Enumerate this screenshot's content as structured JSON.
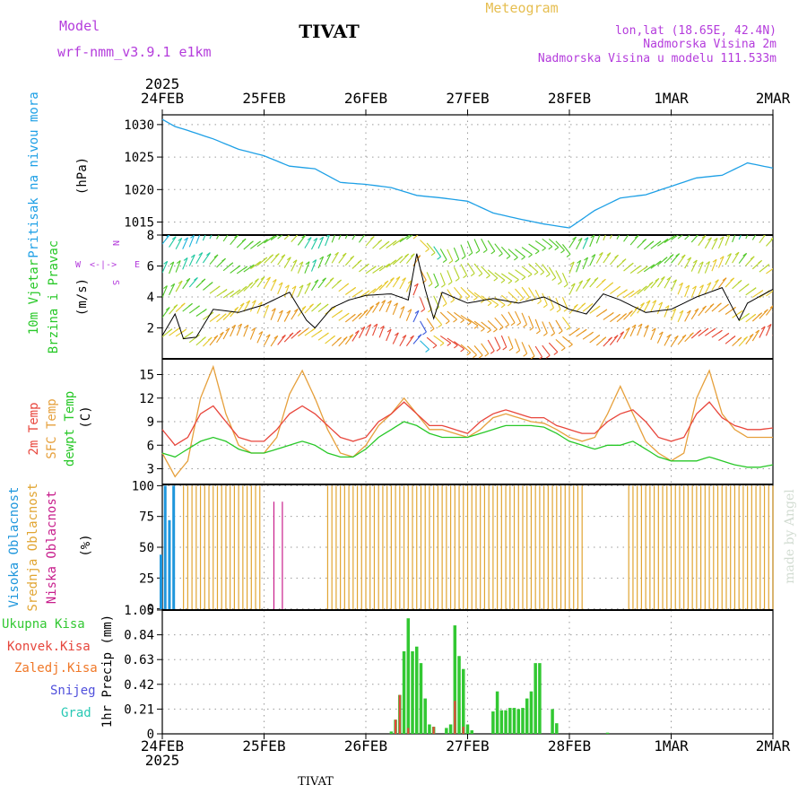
{
  "header": {
    "model_label": "Model",
    "model_name": "wrf-nmm_v3.9.1 e1km",
    "title": "TIVAT",
    "meteogram": "Meteogram",
    "lonlat": "lon,lat (18.65E, 42.4N)",
    "elevation": "Nadmorska Visina 2m",
    "model_elevation": "Nadmorska Visina u modelu 111.533m",
    "watermark": "made by Angel"
  },
  "footer": {
    "station": "TIVAT"
  },
  "colors": {
    "pressure": "#1ea0e6",
    "temp2m": "#e8463c",
    "sfc": "#e6a03c",
    "dewpt": "#28c828",
    "high_cloud": "#1e96dc",
    "mid_cloud": "#e1a532",
    "low_cloud": "#c81e8c",
    "rain_total": "#32c832",
    "rain_conv": "#e6463c",
    "freezing": "#f07828",
    "snow": "#5050dc",
    "hail": "#28c8b4",
    "wind_speed": "#000000"
  },
  "time_axis": {
    "year": "2025",
    "labels": [
      "24FEB",
      "25FEB",
      "26FEB",
      "27FEB",
      "28FEB",
      "1MAR",
      "2MAR"
    ]
  },
  "panels": {
    "pressure": {
      "ylabel": "Pritisak na nivou mora",
      "unit": "(hPa)",
      "ticks": [
        "1015",
        "1020",
        "1025",
        "1030"
      ]
    },
    "wind": {
      "ylabel1": "10m Vjetar",
      "ylabel2": "Brzina i Pravac",
      "unit": "(m/s)",
      "compass_n": "N",
      "compass_s": "S",
      "compass_w": "W",
      "compass_e": "E",
      "ticks": [
        "2",
        "4",
        "6",
        "8"
      ]
    },
    "temp": {
      "label_2m": "2m Temp",
      "label_sfc": "SFC Temp",
      "label_dew": "dewpt Temp",
      "unit": "(C)",
      "ticks": [
        "3",
        "6",
        "9",
        "12",
        "15"
      ]
    },
    "cloud": {
      "label_high": "Visoka Oblacnost",
      "label_mid": "Srednja Oblacnost",
      "label_low": "Niska Oblacnost",
      "unit": "(%)",
      "ticks": [
        "0",
        "25",
        "50",
        "75",
        "100"
      ]
    },
    "precip": {
      "ylabel": "1hr Precip (mm)",
      "legend_total": "Ukupna Kisa",
      "legend_conv": "Konvek.Kisa",
      "legend_freezing": "Zaledj.Kisa",
      "legend_snow": "Snijeg",
      "legend_hail": "Grad",
      "ticks": [
        "0",
        "0.21",
        "0.42",
        "0.63",
        "0.84",
        "1.05"
      ]
    }
  },
  "chart_data": [
    {
      "type": "line",
      "title": "Pritisak na nivou mora",
      "ylabel": "(hPa)",
      "ylim": [
        1013,
        1031.5
      ],
      "x_hours": [
        0,
        3,
        6,
        12,
        18,
        24,
        30,
        36,
        42,
        48,
        54,
        60,
        66,
        72,
        78,
        84,
        90,
        96,
        102,
        108,
        114,
        120,
        126,
        132,
        138,
        144
      ],
      "series": [
        {
          "values": [
            1030.8,
            1029.7,
            1029.1,
            1027.8,
            1026.2,
            1025.2,
            1023.6,
            1023.2,
            1021.1,
            1020.8,
            1020.3,
            1019.1,
            1018.7,
            1018.2,
            1016.4,
            1015.5,
            1014.7,
            1014.1,
            1016.8,
            1018.7,
            1019.2,
            1020.5,
            1021.8,
            1022.2,
            1024.1,
            1023.3
          ]
        }
      ]
    },
    {
      "type": "line",
      "title": "10m Vjetar Brzina i Pravac",
      "ylabel": "(m/s)",
      "ylim": [
        0,
        8
      ],
      "x_hours": [
        0,
        3,
        5,
        8,
        12,
        18,
        24,
        30,
        34,
        36,
        40,
        44,
        48,
        54,
        58,
        60,
        62,
        64,
        66,
        72,
        78,
        84,
        90,
        96,
        100,
        104,
        108,
        114,
        120,
        126,
        132,
        136,
        138,
        144
      ],
      "series": [
        {
          "values": [
            1.5,
            2.9,
            1.3,
            1.4,
            3.2,
            3.0,
            3.5,
            4.3,
            2.5,
            2.0,
            3.3,
            3.8,
            4.1,
            4.2,
            3.8,
            6.8,
            4.5,
            2.6,
            4.3,
            3.6,
            3.9,
            3.6,
            4.0,
            3.2,
            2.9,
            4.2,
            3.8,
            3.0,
            3.2,
            4.0,
            4.6,
            2.5,
            3.6,
            4.5
          ]
        }
      ]
    },
    {
      "type": "line",
      "title": "Temp",
      "ylabel": "(C)",
      "ylim": [
        1,
        17
      ],
      "x_hours": [
        0,
        3,
        6,
        9,
        12,
        15,
        18,
        21,
        24,
        27,
        30,
        33,
        36,
        39,
        42,
        45,
        48,
        51,
        54,
        57,
        60,
        63,
        66,
        69,
        72,
        75,
        78,
        81,
        84,
        87,
        90,
        93,
        96,
        99,
        102,
        105,
        108,
        111,
        114,
        117,
        120,
        123,
        126,
        129,
        132,
        135,
        138,
        141,
        144
      ],
      "series": [
        {
          "name": "2m Temp",
          "values": [
            8,
            6,
            7,
            10,
            11,
            9,
            7,
            6.5,
            6.5,
            8,
            10,
            11,
            10,
            8.5,
            7,
            6.5,
            7,
            9,
            10,
            11.5,
            10,
            8.5,
            8.5,
            8,
            7.5,
            9,
            10,
            10.5,
            10,
            9.5,
            9.5,
            8.5,
            8,
            7.5,
            7.5,
            9,
            10,
            10.5,
            9,
            7,
            6.5,
            7,
            10,
            11.5,
            9.5,
            8.5,
            8,
            8,
            8.2
          ]
        },
        {
          "name": "SFC Temp",
          "values": [
            5,
            2,
            4,
            12,
            16,
            10,
            6,
            5,
            5,
            7,
            12.5,
            15.5,
            12,
            8,
            5,
            4.5,
            6,
            8.5,
            10,
            12,
            10,
            8,
            8,
            7.5,
            7,
            8,
            9.5,
            10,
            9.5,
            9,
            8.8,
            8,
            7,
            6.5,
            7,
            10,
            13.5,
            10,
            6.5,
            5,
            4,
            5,
            12,
            15.5,
            10,
            8,
            7,
            7,
            7
          ]
        },
        {
          "name": "dewpt Temp",
          "values": [
            5,
            4.5,
            5.5,
            6.5,
            7,
            6.5,
            5.5,
            5,
            5,
            5.5,
            6,
            6.5,
            6,
            5,
            4.5,
            4.5,
            5.5,
            7,
            8,
            9,
            8.5,
            7.5,
            7,
            7,
            7,
            7.5,
            8,
            8.5,
            8.5,
            8.5,
            8.3,
            7.5,
            6.5,
            6,
            5.5,
            6,
            6,
            6.5,
            5.5,
            4.5,
            4,
            4,
            4,
            4.5,
            4,
            3.5,
            3.2,
            3.2,
            3.5
          ]
        }
      ]
    },
    {
      "type": "bar",
      "title": "Oblacnost",
      "ylabel": "(%)",
      "ylim": [
        0,
        100
      ],
      "note": "hourly cloud cover in percent, one value per hour from 0 to 144",
      "series": [
        {
          "name": "Visoka Oblacnost",
          "values": [
            44,
            100,
            72,
            100,
            0,
            0,
            0,
            0,
            0,
            0,
            0,
            0,
            0,
            0,
            0,
            0,
            0,
            0,
            0,
            0,
            0,
            0,
            0,
            0,
            0,
            0,
            0,
            0,
            0,
            0,
            0,
            0,
            0,
            0,
            0,
            0,
            0,
            0,
            0,
            0,
            0,
            0,
            0,
            0,
            0,
            0,
            0,
            0,
            0,
            0,
            0,
            0,
            0,
            0,
            0,
            0,
            0,
            0,
            0,
            0,
            0,
            0,
            0,
            0,
            0,
            0,
            0,
            0,
            0,
            0,
            0,
            0,
            0,
            0,
            0,
            0,
            0,
            0,
            0,
            0,
            0,
            0,
            0,
            0,
            0,
            0,
            0,
            0,
            0,
            0,
            0,
            0,
            0,
            0,
            0,
            0,
            0,
            0,
            0,
            0,
            0,
            0,
            0,
            0,
            0,
            0,
            0,
            0,
            0,
            0,
            0,
            0,
            0,
            0,
            0,
            0,
            0,
            0,
            0,
            0,
            0,
            0,
            0,
            0,
            0,
            0,
            0,
            0,
            0,
            0,
            0,
            0,
            0,
            0,
            0,
            0,
            0,
            0,
            0,
            0,
            0,
            0,
            0,
            0,
            0
          ]
        },
        {
          "name": "Srednja Oblacnost",
          "values": [
            0,
            0,
            0,
            0,
            0,
            100,
            100,
            100,
            100,
            100,
            100,
            100,
            100,
            100,
            100,
            100,
            100,
            100,
            100,
            100,
            100,
            100,
            100,
            100,
            0,
            0,
            0,
            0,
            0,
            0,
            0,
            0,
            0,
            0,
            0,
            0,
            0,
            0,
            0,
            100,
            100,
            100,
            100,
            100,
            100,
            100,
            100,
            100,
            100,
            100,
            100,
            100,
            100,
            100,
            100,
            100,
            100,
            100,
            100,
            100,
            100,
            100,
            100,
            100,
            100,
            100,
            100,
            100,
            100,
            100,
            100,
            100,
            100,
            100,
            100,
            100,
            100,
            100,
            100,
            100,
            100,
            100,
            100,
            100,
            100,
            100,
            100,
            100,
            100,
            100,
            100,
            100,
            100,
            100,
            100,
            100,
            100,
            100,
            100,
            100,
            0,
            0,
            0,
            0,
            0,
            0,
            0,
            0,
            0,
            0,
            100,
            100,
            100,
            100,
            100,
            100,
            100,
            100,
            100,
            100,
            100,
            100,
            100,
            100,
            100,
            100,
            100,
            100,
            100,
            100,
            100,
            100,
            100,
            100,
            100,
            100,
            100,
            100,
            100,
            100,
            100,
            100,
            100,
            100,
            100
          ]
        },
        {
          "name": "Niska Oblacnost",
          "values": [
            0,
            0,
            0,
            0,
            0,
            0,
            0,
            0,
            0,
            0,
            0,
            0,
            0,
            0,
            0,
            0,
            0,
            0,
            0,
            0,
            0,
            0,
            0,
            0,
            0,
            0,
            87,
            0,
            87,
            0,
            0,
            0,
            0,
            0,
            0,
            0,
            0,
            0,
            0,
            0,
            0,
            0,
            0,
            0,
            0,
            0,
            0,
            0,
            0,
            0,
            0,
            0,
            0,
            0,
            0,
            0,
            0,
            0,
            0,
            0,
            0,
            0,
            0,
            0,
            0,
            0,
            0,
            0,
            0,
            0,
            0,
            0,
            0,
            0,
            0,
            0,
            0,
            0,
            0,
            0,
            0,
            0,
            0,
            0,
            0,
            0,
            0,
            0,
            0,
            0,
            0,
            0,
            0,
            0,
            0,
            0,
            0,
            0,
            0,
            0,
            0,
            0,
            0,
            0,
            0,
            0,
            0,
            0,
            0,
            0,
            0,
            0,
            0,
            0,
            0,
            0,
            0,
            0,
            0,
            0,
            0,
            0,
            0,
            0,
            0,
            0,
            0,
            0,
            0,
            0,
            0,
            0,
            0,
            0,
            0,
            0,
            0,
            0,
            0,
            0,
            0,
            0,
            0,
            0,
            0
          ]
        }
      ]
    },
    {
      "type": "bar",
      "title": "1hr Precip",
      "ylabel": "(mm)",
      "ylim": [
        0,
        1.05
      ],
      "series": [
        {
          "name": "Ukupna Kisa",
          "points": [
            [
              54,
              0.02
            ],
            [
              55,
              0.12
            ],
            [
              56,
              0.33
            ],
            [
              57,
              0.7
            ],
            [
              58,
              0.98
            ],
            [
              59,
              0.7
            ],
            [
              60,
              0.74
            ],
            [
              61,
              0.6
            ],
            [
              62,
              0.3
            ],
            [
              63,
              0.08
            ],
            [
              64,
              0.06
            ],
            [
              67,
              0.05
            ],
            [
              68,
              0.08
            ],
            [
              69,
              0.92
            ],
            [
              70,
              0.66
            ],
            [
              71,
              0.55
            ],
            [
              72,
              0.08
            ],
            [
              73,
              0.03
            ],
            [
              78,
              0.19
            ],
            [
              79,
              0.36
            ],
            [
              80,
              0.2
            ],
            [
              81,
              0.2
            ],
            [
              82,
              0.22
            ],
            [
              83,
              0.22
            ],
            [
              84,
              0.21
            ],
            [
              85,
              0.22
            ],
            [
              86,
              0.3
            ],
            [
              87,
              0.36
            ],
            [
              88,
              0.6
            ],
            [
              89,
              0.6
            ],
            [
              92,
              0.21
            ],
            [
              93,
              0.09
            ],
            [
              105,
              0.01
            ]
          ]
        },
        {
          "name": "Konvek.Kisa",
          "points": [
            [
              55,
              0.12
            ],
            [
              56,
              0.33
            ],
            [
              58,
              0.05
            ],
            [
              64,
              0.06
            ],
            [
              69,
              0.28
            ],
            [
              71,
              0.06
            ]
          ]
        }
      ]
    }
  ]
}
